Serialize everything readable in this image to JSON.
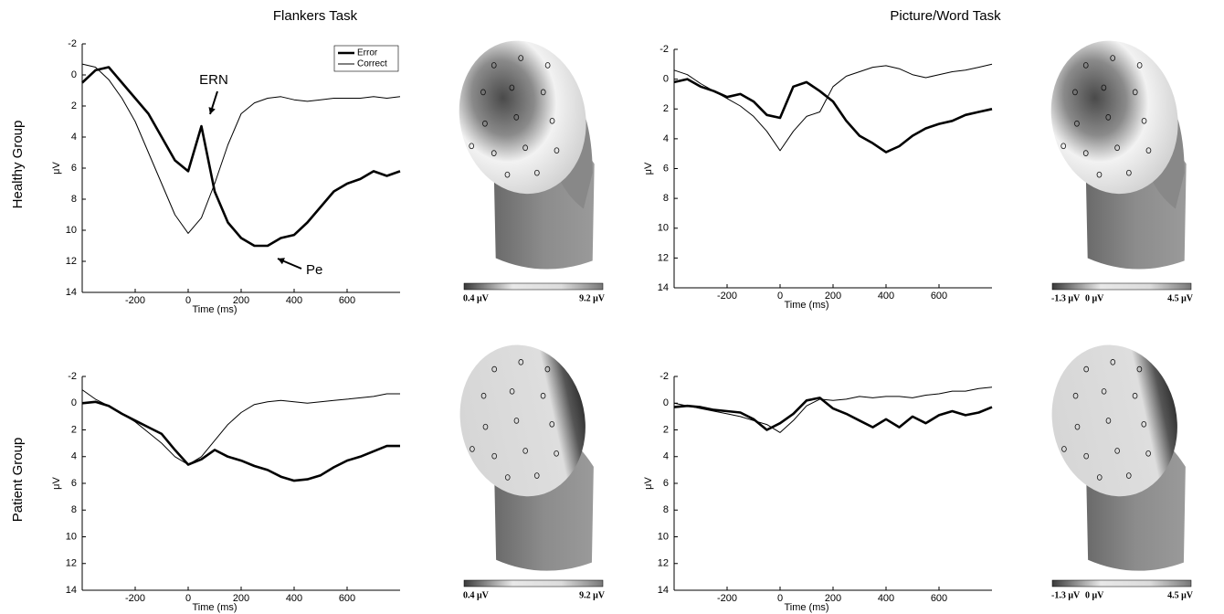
{
  "titles": [
    "Flankers Task",
    "Picture/Word Task"
  ],
  "row_labels": [
    "Healthy Group",
    "Patient Group"
  ],
  "chart_data": [
    {
      "type": "line",
      "xlabel": "Time (ms)",
      "ylabel": "μV",
      "xlim": [
        -400,
        800
      ],
      "ylim": [
        -2,
        14
      ],
      "inverted": true,
      "xticks": [
        -200,
        0,
        200,
        400,
        600
      ],
      "yticks": [
        -2,
        0,
        2,
        4,
        6,
        8,
        10,
        12,
        14
      ],
      "legend": "upper right",
      "annotations": [
        "ERN",
        "Pe"
      ],
      "x": [
        -400,
        -350,
        -300,
        -250,
        -200,
        -150,
        -100,
        -50,
        0,
        50,
        100,
        150,
        200,
        250,
        300,
        350,
        400,
        450,
        500,
        550,
        600,
        650,
        700,
        750,
        800
      ],
      "series": [
        {
          "name": "Error",
          "color": "#000000",
          "width": 2.6,
          "values": [
            0.5,
            -0.3,
            -0.5,
            0.5,
            1.5,
            2.5,
            4.0,
            5.5,
            6.2,
            3.3,
            7.5,
            9.5,
            10.5,
            11.0,
            11.0,
            10.5,
            10.3,
            9.5,
            8.5,
            7.5,
            7.0,
            6.7,
            6.2,
            6.5,
            6.2
          ]
        },
        {
          "name": "Correct",
          "color": "#000000",
          "width": 1,
          "values": [
            -0.7,
            -0.5,
            0.3,
            1.5,
            3.0,
            5.0,
            7.0,
            9.0,
            10.2,
            9.2,
            7.0,
            4.5,
            2.5,
            1.8,
            1.5,
            1.4,
            1.6,
            1.7,
            1.6,
            1.5,
            1.5,
            1.5,
            1.4,
            1.5,
            1.4
          ]
        }
      ]
    },
    {
      "type": "line",
      "xlabel": "Time (ms)",
      "ylabel": "μV",
      "xlim": [
        -400,
        800
      ],
      "ylim": [
        -2,
        14
      ],
      "inverted": true,
      "xticks": [
        -200,
        0,
        200,
        400,
        600
      ],
      "yticks": [
        -2,
        0,
        2,
        4,
        6,
        8,
        10,
        12,
        14
      ],
      "x": [
        -400,
        -350,
        -300,
        -250,
        -200,
        -150,
        -100,
        -50,
        0,
        50,
        100,
        150,
        200,
        250,
        300,
        350,
        400,
        450,
        500,
        550,
        600,
        650,
        700,
        750,
        800
      ],
      "series": [
        {
          "color": "#000000",
          "width": 2.6,
          "values": [
            0.2,
            0.0,
            0.5,
            0.8,
            1.2,
            1.0,
            1.5,
            2.4,
            2.6,
            0.5,
            0.2,
            0.8,
            1.5,
            2.8,
            3.8,
            4.3,
            4.9,
            4.5,
            3.8,
            3.3,
            3.0,
            2.8,
            2.4,
            2.2,
            2.0
          ]
        },
        {
          "color": "#000000",
          "width": 1,
          "values": [
            -0.6,
            -0.3,
            0.3,
            0.8,
            1.3,
            1.8,
            2.5,
            3.5,
            4.8,
            3.5,
            2.5,
            2.2,
            0.5,
            -0.2,
            -0.5,
            -0.8,
            -0.9,
            -0.7,
            -0.3,
            -0.1,
            -0.3,
            -0.5,
            -0.6,
            -0.8,
            -1.0
          ]
        }
      ]
    },
    {
      "type": "line",
      "xlabel": "Time (ms)",
      "ylabel": "μV",
      "xlim": [
        -400,
        800
      ],
      "ylim": [
        -2,
        14
      ],
      "inverted": true,
      "xticks": [
        -200,
        0,
        200,
        400,
        600
      ],
      "yticks": [
        -2,
        0,
        2,
        4,
        6,
        8,
        10,
        12,
        14
      ],
      "x": [
        -400,
        -350,
        -300,
        -250,
        -200,
        -150,
        -100,
        -50,
        0,
        50,
        100,
        150,
        200,
        250,
        300,
        350,
        400,
        450,
        500,
        550,
        600,
        650,
        700,
        750,
        800
      ],
      "series": [
        {
          "color": "#000000",
          "width": 2.6,
          "values": [
            0.0,
            -0.1,
            0.2,
            0.8,
            1.3,
            1.8,
            2.3,
            3.5,
            4.6,
            4.2,
            3.5,
            4.0,
            4.3,
            4.7,
            5.0,
            5.5,
            5.8,
            5.7,
            5.4,
            4.8,
            4.3,
            4.0,
            3.6,
            3.2,
            3.2
          ]
        },
        {
          "color": "#000000",
          "width": 1,
          "values": [
            -1.0,
            -0.3,
            0.2,
            0.8,
            1.4,
            2.2,
            3.0,
            4.0,
            4.6,
            4.0,
            2.8,
            1.6,
            0.7,
            0.1,
            -0.1,
            -0.2,
            -0.1,
            0,
            -0.1,
            -0.2,
            -0.3,
            -0.4,
            -0.5,
            -0.7,
            -0.7
          ]
        }
      ]
    },
    {
      "type": "line",
      "xlabel": "Time (ms)",
      "ylabel": "μV",
      "xlim": [
        -400,
        800
      ],
      "ylim": [
        -2,
        14
      ],
      "inverted": true,
      "xticks": [
        -200,
        0,
        200,
        400,
        600
      ],
      "yticks": [
        -2,
        0,
        2,
        4,
        6,
        8,
        10,
        12,
        14
      ],
      "x": [
        -400,
        -350,
        -300,
        -250,
        -200,
        -150,
        -100,
        -50,
        0,
        50,
        100,
        150,
        200,
        250,
        300,
        350,
        400,
        450,
        500,
        550,
        600,
        650,
        700,
        750,
        800
      ],
      "series": [
        {
          "color": "#000000",
          "width": 2.6,
          "values": [
            0.3,
            0.2,
            0.3,
            0.5,
            0.6,
            0.7,
            1.2,
            2.0,
            1.5,
            0.8,
            -0.2,
            -0.4,
            0.4,
            0.8,
            1.3,
            1.8,
            1.2,
            1.8,
            1.0,
            1.5,
            0.9,
            0.6,
            0.9,
            0.7,
            0.3
          ]
        },
        {
          "color": "#000000",
          "width": 1,
          "values": [
            0.0,
            0.2,
            0.4,
            0.6,
            0.8,
            1.0,
            1.3,
            1.6,
            2.2,
            1.3,
            0.2,
            -0.3,
            -0.2,
            -0.3,
            -0.5,
            -0.4,
            -0.5,
            -0.5,
            -0.4,
            -0.6,
            -0.7,
            -0.9,
            -0.9,
            -1.1,
            -1.2
          ]
        }
      ]
    }
  ],
  "topomaps": [
    {
      "labels": [
        "0.4 μV",
        "9.2 μV"
      ]
    },
    {
      "labels": [
        "-1.3 μV",
        "0 μV",
        "4.5 μV"
      ]
    },
    {
      "labels": [
        "0.4 μV",
        "9.2 μV"
      ]
    },
    {
      "labels": [
        "-1.3 μV",
        "0 μV",
        "4.5 μV"
      ]
    }
  ]
}
